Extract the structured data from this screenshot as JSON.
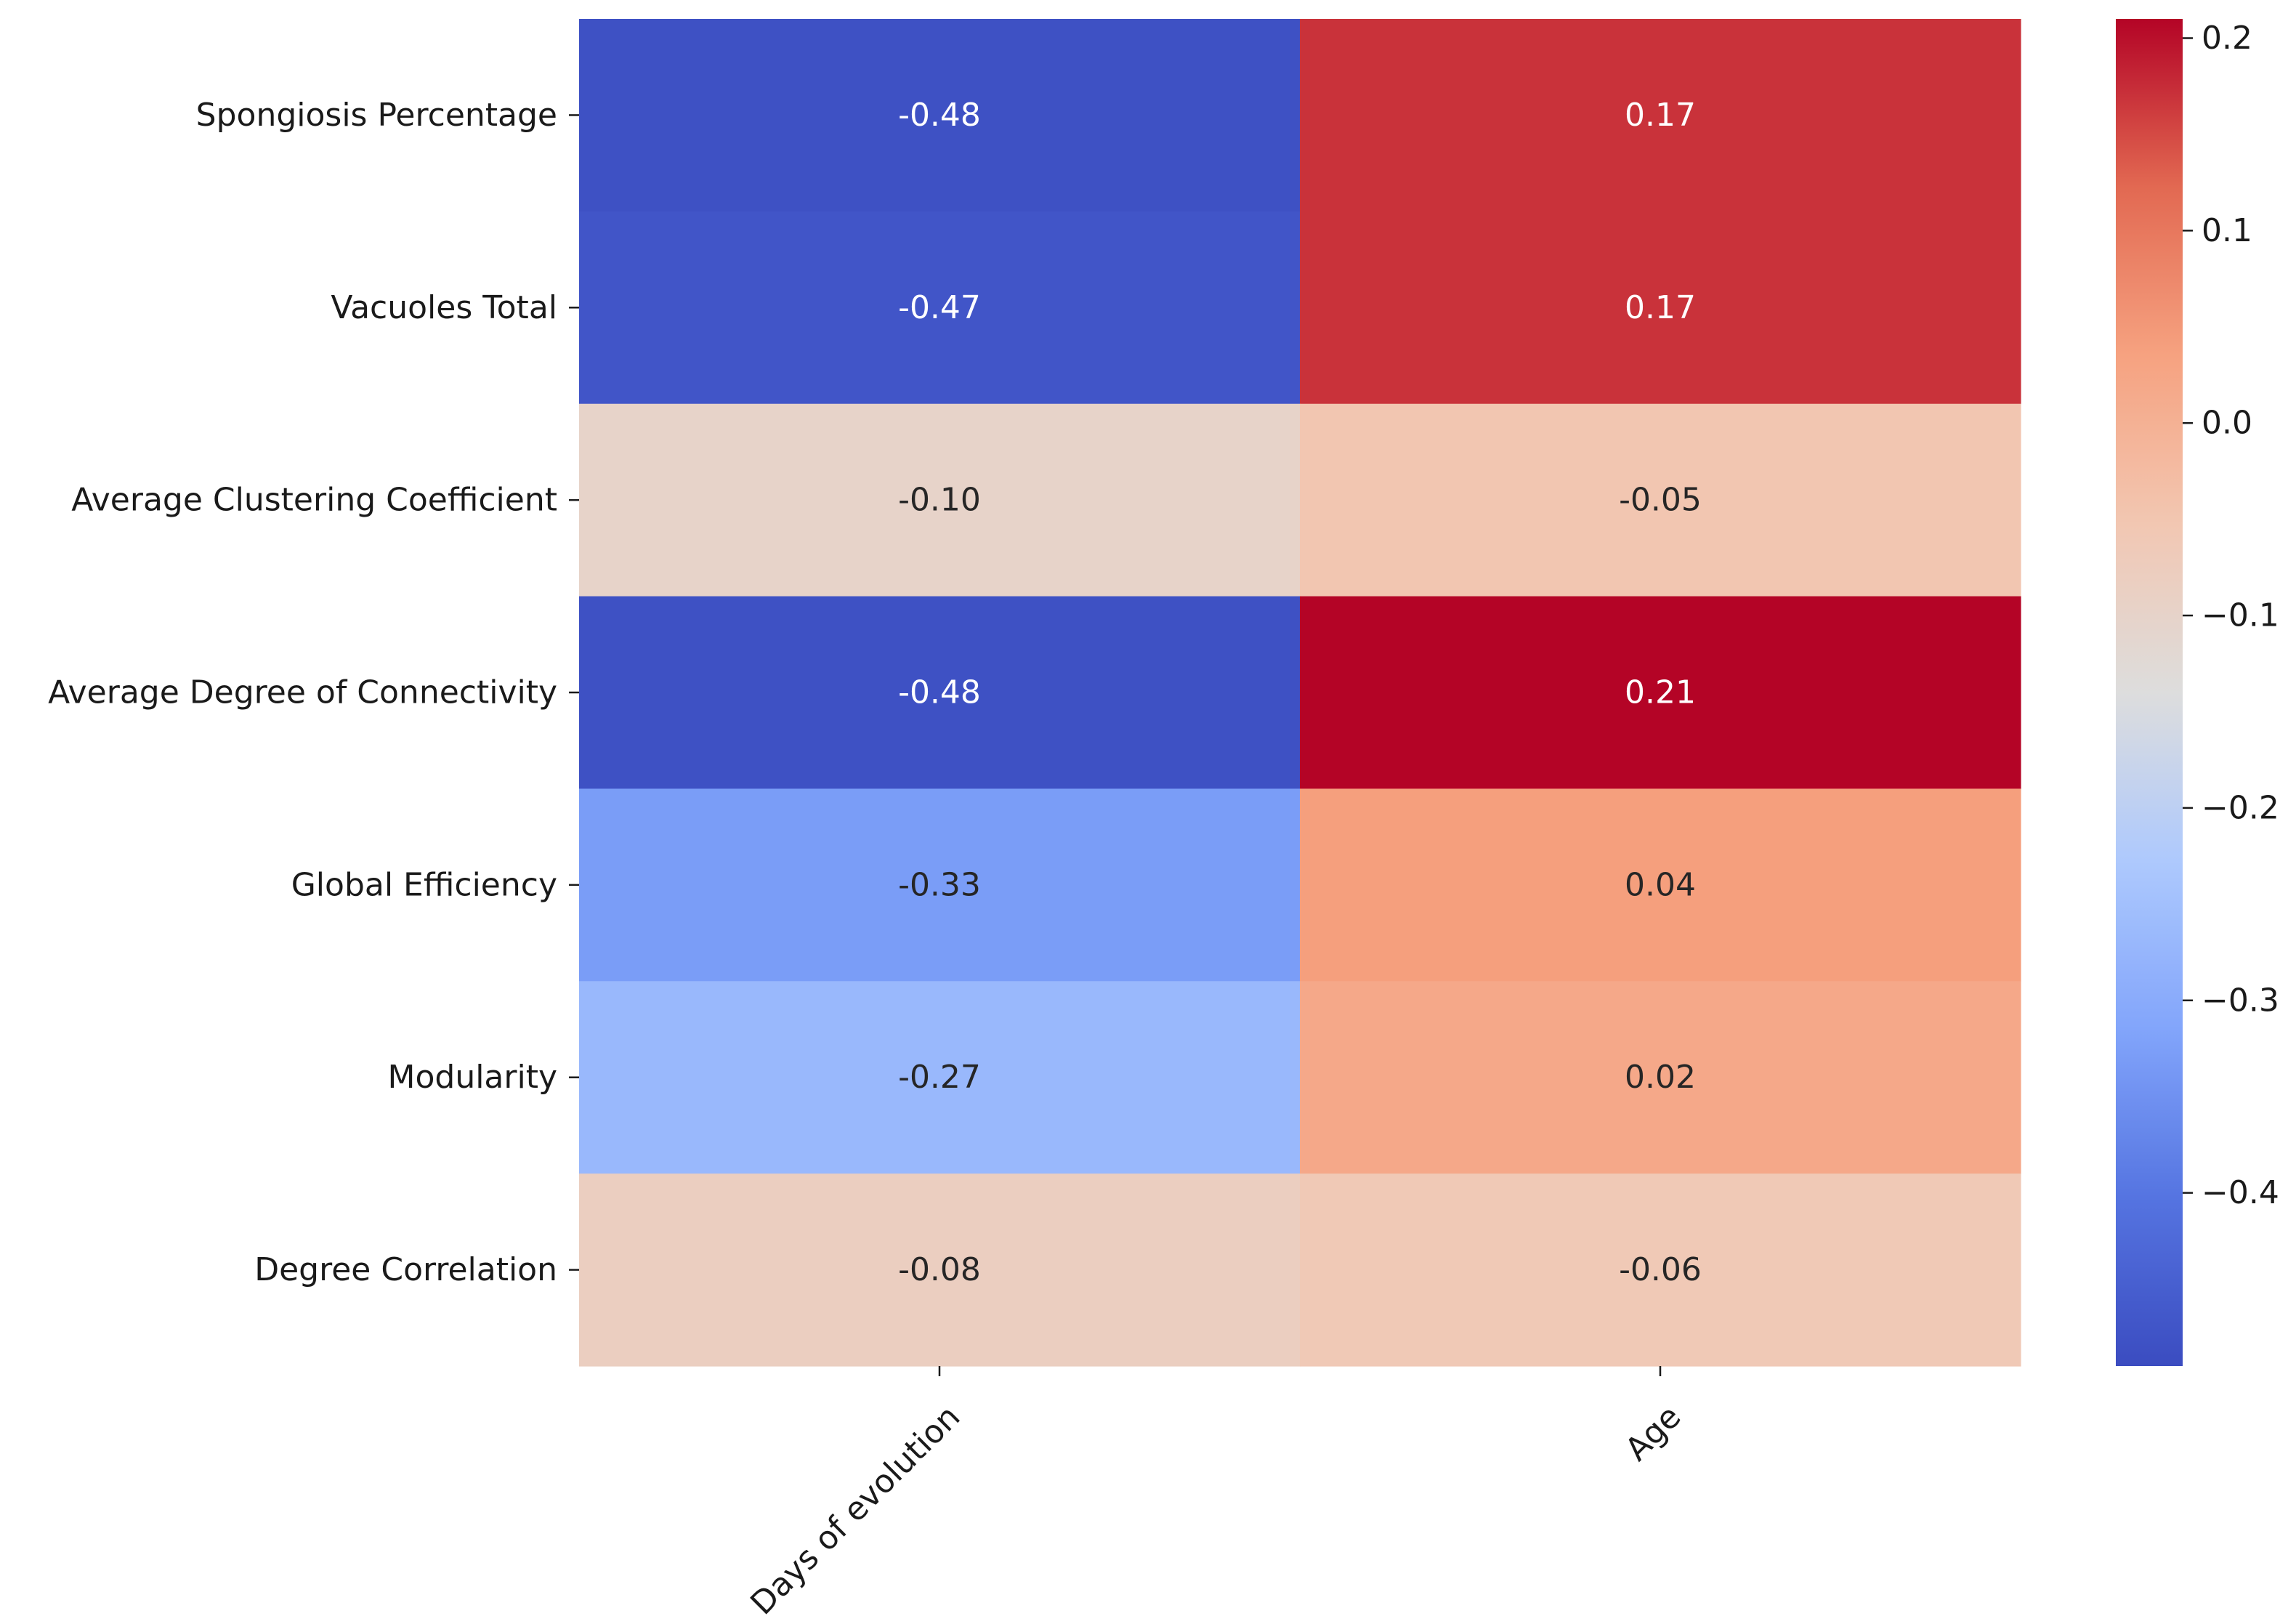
{
  "chart_data": {
    "type": "heatmap",
    "title": "",
    "xlabel": "",
    "ylabel": "",
    "colormap": "coolwarm",
    "x_categories": [
      "Days of evolution",
      "Age"
    ],
    "y_categories": [
      "Spongiosis Percentage",
      "Vacuoles Total",
      "Average Clustering Coefficient",
      "Average Degree of Connectivity",
      "Global Efficiency",
      "Modularity",
      "Degree Correlation"
    ],
    "values": [
      [
        -0.48,
        0.17
      ],
      [
        -0.47,
        0.17
      ],
      [
        -0.1,
        -0.05
      ],
      [
        -0.48,
        0.21
      ],
      [
        -0.33,
        0.04
      ],
      [
        -0.27,
        0.02
      ],
      [
        -0.08,
        -0.06
      ]
    ],
    "cell_labels": [
      [
        "-0.48",
        "0.17"
      ],
      [
        "-0.47",
        "0.17"
      ],
      [
        "-0.10",
        "-0.05"
      ],
      [
        "-0.48",
        "0.21"
      ],
      [
        "-0.33",
        "0.04"
      ],
      [
        "-0.27",
        "0.02"
      ],
      [
        "-0.08",
        "-0.06"
      ]
    ],
    "colorbar": {
      "range": [
        -0.49,
        0.21
      ],
      "ticks": [
        0.2,
        0.1,
        0.0,
        -0.1,
        -0.2,
        -0.3,
        -0.4
      ],
      "tick_labels": [
        "0.2",
        "0.1",
        "0.0",
        "−0.1",
        "−0.2",
        "−0.3",
        "−0.4"
      ]
    }
  }
}
